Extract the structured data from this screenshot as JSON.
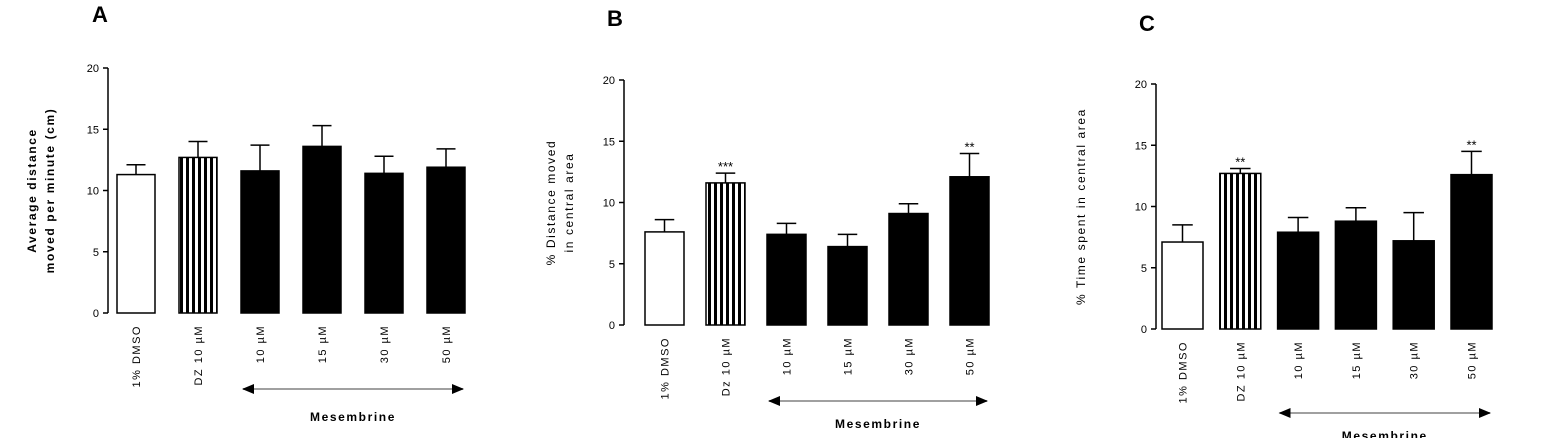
{
  "chart_data": [
    {
      "type": "bar",
      "panel": "A",
      "ylabel_lines": [
        "Average distance",
        "moved per minute (cm)"
      ],
      "ylabel_bold": true,
      "categories": [
        "1% DMSO",
        "DZ 10 µM",
        "10 µM",
        "15 µM",
        "30 µM",
        "50 µM"
      ],
      "values": [
        11.3,
        12.7,
        11.6,
        13.6,
        11.4,
        11.9
      ],
      "errors": [
        0.8,
        1.3,
        2.1,
        1.7,
        1.4,
        1.5
      ],
      "bar_styles": [
        "open",
        "striped",
        "filled",
        "filled",
        "filled",
        "filled"
      ],
      "significance": [
        "",
        "",
        "",
        "",
        "",
        ""
      ],
      "ylim": [
        0,
        20
      ],
      "yticks": [
        0,
        5,
        10,
        15,
        20
      ],
      "group_label": "Mesembrine",
      "group_range": [
        2,
        5
      ]
    },
    {
      "type": "bar",
      "panel": "B",
      "ylabel_lines": [
        "% Distance moved",
        "in central area"
      ],
      "ylabel_bold": false,
      "categories": [
        "1% DMSO",
        "Dz 10 µM",
        "10 µM",
        "15 µM",
        "30 µM",
        "50 µM"
      ],
      "values": [
        7.6,
        11.6,
        7.4,
        6.4,
        9.1,
        12.1
      ],
      "errors": [
        1.0,
        0.8,
        0.9,
        1.0,
        0.8,
        1.9
      ],
      "bar_styles": [
        "open",
        "striped",
        "filled",
        "filled",
        "filled",
        "filled"
      ],
      "significance": [
        "",
        "***",
        "",
        "",
        "",
        "**"
      ],
      "ylim": [
        0,
        20
      ],
      "yticks": [
        0,
        5,
        10,
        15,
        20
      ],
      "group_label": "Mesembrine",
      "group_range": [
        2,
        5
      ]
    },
    {
      "type": "bar",
      "panel": "C",
      "ylabel_lines": [
        "% Time spent in central area"
      ],
      "ylabel_bold": false,
      "categories": [
        "1% DMSO",
        "DZ 10 µM",
        "10 µM",
        "15 µM",
        "30 µM",
        "50 µM"
      ],
      "values": [
        7.1,
        12.7,
        7.9,
        8.8,
        7.2,
        12.6
      ],
      "errors": [
        1.4,
        0.4,
        1.2,
        1.1,
        2.3,
        1.9
      ],
      "bar_styles": [
        "open",
        "striped",
        "filled",
        "filled",
        "filled",
        "filled"
      ],
      "significance": [
        "",
        "**",
        "",
        "",
        "",
        "**"
      ],
      "ylim": [
        0,
        20
      ],
      "yticks": [
        0,
        5,
        10,
        15,
        20
      ],
      "group_label": "Mesembrine",
      "group_range": [
        2,
        5
      ]
    }
  ]
}
